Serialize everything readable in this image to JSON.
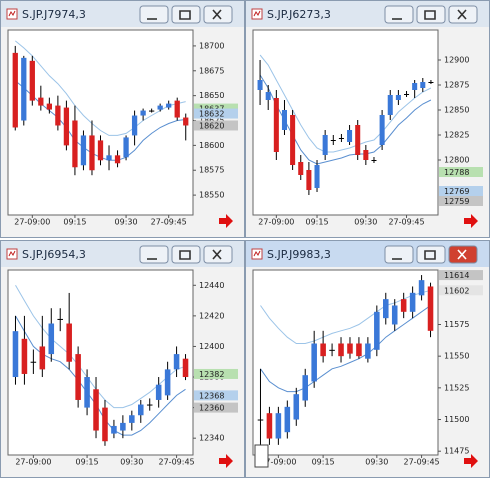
{
  "chart_data": [
    {
      "type": "candlestick",
      "title": "S.JP.J7974,3",
      "ylim": [
        18530,
        18716
      ],
      "yticks": [
        18550,
        18575,
        18600,
        18625,
        18650,
        18675,
        18700
      ],
      "categories": [
        null,
        null,
        "27-09:00",
        null,
        null,
        null,
        null,
        "09:15",
        null,
        null,
        null,
        null,
        null,
        "09:30",
        null,
        null,
        null,
        null,
        "27-09:45",
        null,
        null
      ],
      "open": [
        18693,
        18625,
        18685,
        18648,
        18642,
        18640,
        18638,
        18625,
        18580,
        18610,
        18605,
        18585,
        18590,
        18588,
        18610,
        18630,
        18635,
        18636,
        18638,
        18645,
        18628
      ],
      "high": [
        18700,
        18690,
        18690,
        18660,
        18648,
        18650,
        18645,
        18640,
        18615,
        18625,
        18610,
        18600,
        18595,
        18610,
        18635,
        18637,
        18637,
        18642,
        18645,
        18648,
        18632
      ],
      "low": [
        18615,
        18620,
        18640,
        18635,
        18632,
        18615,
        18595,
        18570,
        18575,
        18570,
        18580,
        18575,
        18578,
        18585,
        18600,
        18625,
        18633,
        18634,
        18636,
        18625,
        18605
      ],
      "close": [
        18618,
        18688,
        18645,
        18640,
        18636,
        18620,
        18600,
        18578,
        18610,
        18575,
        18585,
        18590,
        18582,
        18608,
        18630,
        18635,
        18635,
        18640,
        18642,
        18628,
        18620
      ],
      "lines": [
        {
          "color": "#9cc4e8",
          "values": [
            18705,
            18698,
            18690,
            18680,
            18670,
            18662,
            18652,
            18640,
            18630,
            18622,
            18615,
            18610,
            18610,
            18612,
            18618,
            18625,
            18630,
            18635,
            18640,
            18642,
            18644
          ]
        },
        {
          "color": "#5a8fd0",
          "values": [
            18665,
            18658,
            18650,
            18642,
            18635,
            18628,
            18618,
            18605,
            18598,
            18592,
            18588,
            18585,
            18585,
            18588,
            18595,
            18605,
            18612,
            18618,
            18622,
            18625,
            18626
          ]
        }
      ],
      "price_markers": [
        {
          "value": 18637,
          "color": "#b8e0b0"
        },
        {
          "value": 18632,
          "color": "#b4d0ec"
        },
        {
          "value": 18620,
          "color": "#c4c4c4"
        }
      ],
      "up_color": "#3a78d8",
      "down_color": "#d82020",
      "flat_color": "#000000"
    },
    {
      "type": "candlestick",
      "title": "S.JP.J6273,3",
      "ylim": [
        12745,
        12930
      ],
      "yticks": [
        12800,
        12825,
        12850,
        12875,
        12900
      ],
      "categories": [
        null,
        null,
        "27-09:00",
        null,
        null,
        null,
        null,
        "09:15",
        null,
        null,
        null,
        null,
        null,
        "09:30",
        null,
        null,
        null,
        null,
        "27-09:45",
        null,
        null,
        null
      ],
      "open": [
        12870,
        12860,
        12862,
        12830,
        12845,
        12798,
        12790,
        12772,
        12805,
        12820,
        12822,
        12818,
        12835,
        12810,
        12800,
        12815,
        12845,
        12860,
        12866,
        12870,
        12872,
        12878
      ],
      "high": [
        12900,
        12875,
        12870,
        12860,
        12850,
        12805,
        12798,
        12800,
        12830,
        12825,
        12826,
        12835,
        12840,
        12815,
        12803,
        12850,
        12870,
        12870,
        12869,
        12880,
        12882,
        12880
      ],
      "low": [
        12855,
        12850,
        12800,
        12825,
        12790,
        12780,
        12765,
        12768,
        12800,
        12815,
        12818,
        12815,
        12800,
        12795,
        12797,
        12810,
        12840,
        12855,
        12863,
        12862,
        12868,
        12876
      ],
      "close": [
        12880,
        12868,
        12808,
        12850,
        12795,
        12785,
        12770,
        12795,
        12825,
        12820,
        12822,
        12830,
        12805,
        12800,
        12800,
        12845,
        12865,
        12865,
        12866,
        12877,
        12878,
        12878
      ],
      "lines": [
        {
          "color": "#9cc4e8",
          "values": [
            12905,
            12895,
            12880,
            12865,
            12850,
            12835,
            12822,
            12812,
            12808,
            12808,
            12810,
            12812,
            12815,
            12818,
            12820,
            12828,
            12838,
            12848,
            12855,
            12862,
            12868,
            12872
          ]
        },
        {
          "color": "#5a8fd0",
          "values": [
            12885,
            12872,
            12855,
            12840,
            12825,
            12810,
            12800,
            12796,
            12798,
            12800,
            12802,
            12805,
            12806,
            12806,
            12808,
            12815,
            12825,
            12835,
            12842,
            12850,
            12856,
            12860
          ]
        }
      ],
      "price_markers": [
        {
          "value": 12788,
          "color": "#b8e0b0"
        },
        {
          "value": 12769,
          "color": "#b4d0ec"
        },
        {
          "value": 12759,
          "color": "#c4c4c4"
        }
      ],
      "up_color": "#3a78d8",
      "down_color": "#d82020",
      "flat_color": "#000000"
    },
    {
      "type": "candlestick",
      "title": "S.JP.J6954,3",
      "ylim": [
        12329,
        12450
      ],
      "yticks": [
        12340,
        12360,
        12380,
        12400,
        12420,
        12440
      ],
      "categories": [
        null,
        null,
        "27-09:00",
        null,
        null,
        null,
        null,
        null,
        "09:15",
        null,
        null,
        null,
        null,
        "09:30",
        null,
        null,
        null,
        null,
        "27-09:45",
        null
      ],
      "open": [
        12380,
        12405,
        12390,
        12400,
        12395,
        12418,
        12415,
        12395,
        12360,
        12372,
        12360,
        12343,
        12345,
        12350,
        12355,
        12362,
        12365,
        12368,
        12385,
        12392
      ],
      "high": [
        12420,
        12420,
        12398,
        12420,
        12425,
        12425,
        12435,
        12400,
        12385,
        12380,
        12365,
        12352,
        12355,
        12358,
        12365,
        12366,
        12380,
        12390,
        12400,
        12395
      ],
      "low": [
        12375,
        12375,
        12382,
        12380,
        12390,
        12410,
        12385,
        12360,
        12355,
        12340,
        12335,
        12340,
        12340,
        12345,
        12350,
        12358,
        12360,
        12365,
        12380,
        12378
      ],
      "close": [
        12410,
        12382,
        12390,
        12385,
        12415,
        12418,
        12390,
        12365,
        12380,
        12345,
        12338,
        12348,
        12350,
        12355,
        12362,
        12362,
        12375,
        12385,
        12395,
        12380
      ],
      "lines": [
        {
          "color": "#9cc4e8",
          "values": [
            12440,
            12430,
            12420,
            12412,
            12405,
            12400,
            12395,
            12388,
            12380,
            12372,
            12365,
            12360,
            12360,
            12362,
            12366,
            12370,
            12375,
            12380,
            12385,
            12387
          ]
        },
        {
          "color": "#5a8fd0",
          "values": [
            12420,
            12410,
            12400,
            12395,
            12392,
            12390,
            12385,
            12378,
            12370,
            12362,
            12352,
            12345,
            12342,
            12342,
            12345,
            12350,
            12356,
            12362,
            12368,
            12372
          ]
        }
      ],
      "price_markers": [
        {
          "value": 12382,
          "color": "#b8e0b0"
        },
        {
          "value": 12368,
          "color": "#b4d0ec"
        },
        {
          "value": 12360,
          "color": "#c4c4c4"
        }
      ],
      "up_color": "#3a78d8",
      "down_color": "#d82020",
      "flat_color": "#000000"
    },
    {
      "type": "candlestick",
      "title": "S.JP.J9983,3",
      "ylim": [
        11472,
        11618
      ],
      "yticks": [
        11475,
        11500,
        11525,
        11550,
        11575
      ],
      "categories": [
        null,
        null,
        "27-09:00",
        null,
        null,
        null,
        null,
        "09:15",
        null,
        null,
        null,
        null,
        null,
        "09:30",
        null,
        null,
        null,
        null,
        "27-09:45",
        null
      ],
      "open": [
        11500,
        11505,
        11485,
        11490,
        11500,
        11515,
        11530,
        11560,
        11555,
        11560,
        11560,
        11560,
        11548,
        11555,
        11580,
        11575,
        11595,
        11585,
        11598,
        11605
      ],
      "high": [
        11540,
        11510,
        11510,
        11515,
        11525,
        11540,
        11570,
        11570,
        11560,
        11565,
        11565,
        11565,
        11565,
        11590,
        11600,
        11595,
        11600,
        11605,
        11614,
        11608
      ],
      "low": [
        11470,
        11480,
        11480,
        11485,
        11495,
        11510,
        11525,
        11545,
        11550,
        11545,
        11548,
        11548,
        11545,
        11550,
        11575,
        11570,
        11580,
        11580,
        11594,
        11565
      ],
      "close": [
        11500,
        11485,
        11505,
        11510,
        11520,
        11535,
        11560,
        11550,
        11555,
        11550,
        11552,
        11550,
        11560,
        11585,
        11595,
        11590,
        11585,
        11600,
        11610,
        11570
      ],
      "lines": [
        {
          "color": "#9cc4e8",
          "values": [
            11590,
            11580,
            11572,
            11565,
            11560,
            11560,
            11562,
            11565,
            11568,
            11570,
            11572,
            11575,
            11580,
            11585,
            11590,
            11592,
            11595,
            11598,
            11600,
            11602
          ]
        },
        {
          "color": "#5a8fd0",
          "values": [
            11540,
            11530,
            11525,
            11522,
            11522,
            11525,
            11530,
            11535,
            11540,
            11542,
            11545,
            11548,
            11552,
            11558,
            11565,
            11570,
            11575,
            11580,
            11585,
            11590
          ]
        }
      ],
      "price_markers": [
        {
          "value": 11614,
          "color": "#c4c4c4"
        },
        {
          "value": 11602,
          "color": "#e4e4e4"
        }
      ],
      "up_color": "#3a78d8",
      "down_color": "#d82020",
      "flat_color": "#000000"
    }
  ]
}
